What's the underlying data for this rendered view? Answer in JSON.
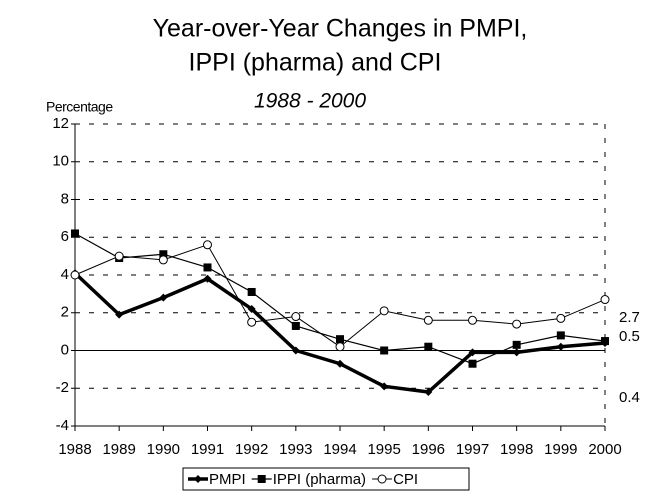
{
  "chart_data": {
    "type": "line",
    "title": [
      "Year-over-Year Changes in PMPI,",
      "IPPI (pharma) and CPI"
    ],
    "subtitle": "1988 - 2000",
    "y_label": "Percentage",
    "categories": [
      "1988",
      "1989",
      "1990",
      "1991",
      "1992",
      "1993",
      "1994",
      "1995",
      "1996",
      "1997",
      "1998",
      "1999",
      "2000"
    ],
    "series": [
      {
        "name": "PMPI",
        "color": "#000000",
        "marker": "diamond",
        "values": [
          4.1,
          1.9,
          2.8,
          3.8,
          2.2,
          0.0,
          -0.7,
          -1.9,
          -2.2,
          -0.1,
          -0.1,
          0.2,
          0.4
        ]
      },
      {
        "name": "IPPI (pharma)",
        "color": "#000000",
        "marker": "square",
        "values": [
          6.2,
          4.9,
          5.1,
          4.4,
          3.1,
          1.3,
          0.6,
          0.0,
          0.2,
          -0.7,
          0.3,
          0.8,
          0.5
        ]
      },
      {
        "name": "CPI",
        "color": "#000000",
        "marker": "circle",
        "values": [
          4.0,
          5.0,
          4.8,
          5.6,
          1.5,
          1.8,
          0.2,
          2.1,
          1.6,
          1.6,
          1.4,
          1.7,
          2.7
        ]
      }
    ],
    "ylim": [
      -4,
      12
    ],
    "yticks": [
      -4,
      -2,
      0,
      2,
      4,
      6,
      8,
      10,
      12
    ],
    "grid": true,
    "legend": "bottom"
  }
}
